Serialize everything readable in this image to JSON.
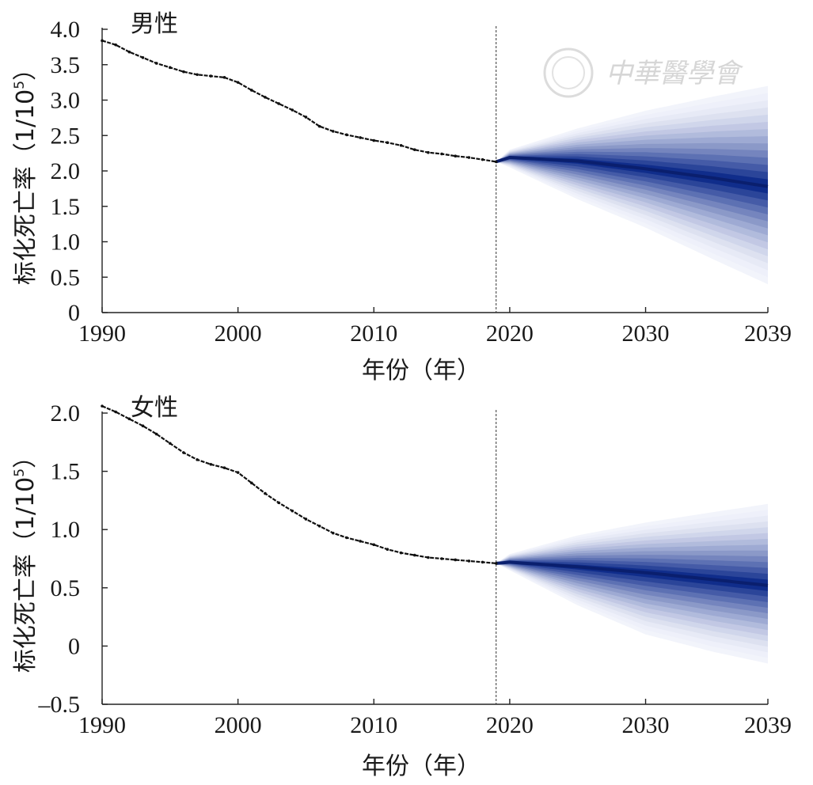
{
  "watermark": "中華醫學會",
  "chart_data": [
    {
      "type": "line",
      "title": "男性",
      "xlabel": "年份（年）",
      "ylabel": "标化死亡率（1/10",
      "ylabel_sup": "5",
      "ylabel_close": "）",
      "xlim": [
        1990,
        2039
      ],
      "ylim": [
        0,
        4.0
      ],
      "x_ticks": [
        "1990",
        "2000",
        "2010",
        "2020",
        "2030",
        "2039"
      ],
      "y_ticks": [
        "0",
        "0.5",
        "1.0",
        "1.5",
        "2.0",
        "2.5",
        "3.0",
        "3.5",
        "4.0"
      ],
      "divider_year": 2019,
      "observed": {
        "x": [
          1990,
          1991,
          1992,
          1993,
          1994,
          1995,
          1996,
          1997,
          1998,
          1999,
          2000,
          2001,
          2002,
          2003,
          2004,
          2005,
          2006,
          2007,
          2008,
          2009,
          2010,
          2011,
          2012,
          2013,
          2014,
          2015,
          2016,
          2017,
          2018,
          2019
        ],
        "y": [
          3.84,
          3.78,
          3.68,
          3.6,
          3.52,
          3.46,
          3.4,
          3.36,
          3.34,
          3.32,
          3.25,
          3.14,
          3.04,
          2.95,
          2.86,
          2.76,
          2.63,
          2.56,
          2.51,
          2.47,
          2.43,
          2.4,
          2.36,
          2.3,
          2.26,
          2.24,
          2.21,
          2.19,
          2.16,
          2.13
        ]
      },
      "forecast": {
        "x": [
          2019,
          2020,
          2025,
          2030,
          2035,
          2039
        ],
        "median": [
          2.13,
          2.19,
          2.14,
          2.03,
          1.9,
          1.78
        ],
        "p90_low": [
          2.13,
          2.12,
          1.9,
          1.6,
          1.25,
          0.9
        ],
        "p90_high": [
          2.13,
          2.26,
          2.38,
          2.48,
          2.6,
          2.7
        ],
        "max_low": [
          2.13,
          2.05,
          1.6,
          1.2,
          0.75,
          0.4
        ],
        "max_high": [
          2.13,
          2.3,
          2.6,
          2.85,
          3.05,
          3.2
        ]
      }
    },
    {
      "type": "line",
      "title": "女性",
      "xlabel": "年份（年）",
      "ylabel": "标化死亡率（1/10",
      "ylabel_sup": "5",
      "ylabel_close": "）",
      "xlim": [
        1990,
        2039
      ],
      "ylim": [
        -0.5,
        2.0
      ],
      "x_ticks": [
        "1990",
        "2000",
        "2010",
        "2020",
        "2030",
        "2039"
      ],
      "y_ticks": [
        "–0.5",
        "0",
        "0.5",
        "1.0",
        "1.5",
        "2.0"
      ],
      "divider_year": 2019,
      "observed": {
        "x": [
          1990,
          1991,
          1992,
          1993,
          1994,
          1995,
          1996,
          1997,
          1998,
          1999,
          2000,
          2001,
          2002,
          2003,
          2004,
          2005,
          2006,
          2007,
          2008,
          2009,
          2010,
          2011,
          2012,
          2013,
          2014,
          2015,
          2016,
          2017,
          2018,
          2019
        ],
        "y": [
          2.06,
          2.01,
          1.95,
          1.89,
          1.82,
          1.74,
          1.66,
          1.6,
          1.56,
          1.53,
          1.49,
          1.4,
          1.31,
          1.23,
          1.16,
          1.09,
          1.03,
          0.97,
          0.93,
          0.9,
          0.87,
          0.83,
          0.8,
          0.78,
          0.76,
          0.75,
          0.74,
          0.73,
          0.72,
          0.71
        ]
      },
      "forecast": {
        "x": [
          2019,
          2020,
          2025,
          2030,
          2035,
          2039
        ],
        "median": [
          0.71,
          0.72,
          0.68,
          0.63,
          0.57,
          0.52
        ],
        "p90_low": [
          0.71,
          0.68,
          0.5,
          0.32,
          0.15,
          0.0
        ],
        "p90_high": [
          0.71,
          0.76,
          0.83,
          0.88,
          0.93,
          0.98
        ],
        "max_low": [
          0.71,
          0.65,
          0.35,
          0.1,
          -0.05,
          -0.15
        ],
        "max_high": [
          0.71,
          0.79,
          0.95,
          1.06,
          1.15,
          1.22
        ]
      }
    }
  ]
}
